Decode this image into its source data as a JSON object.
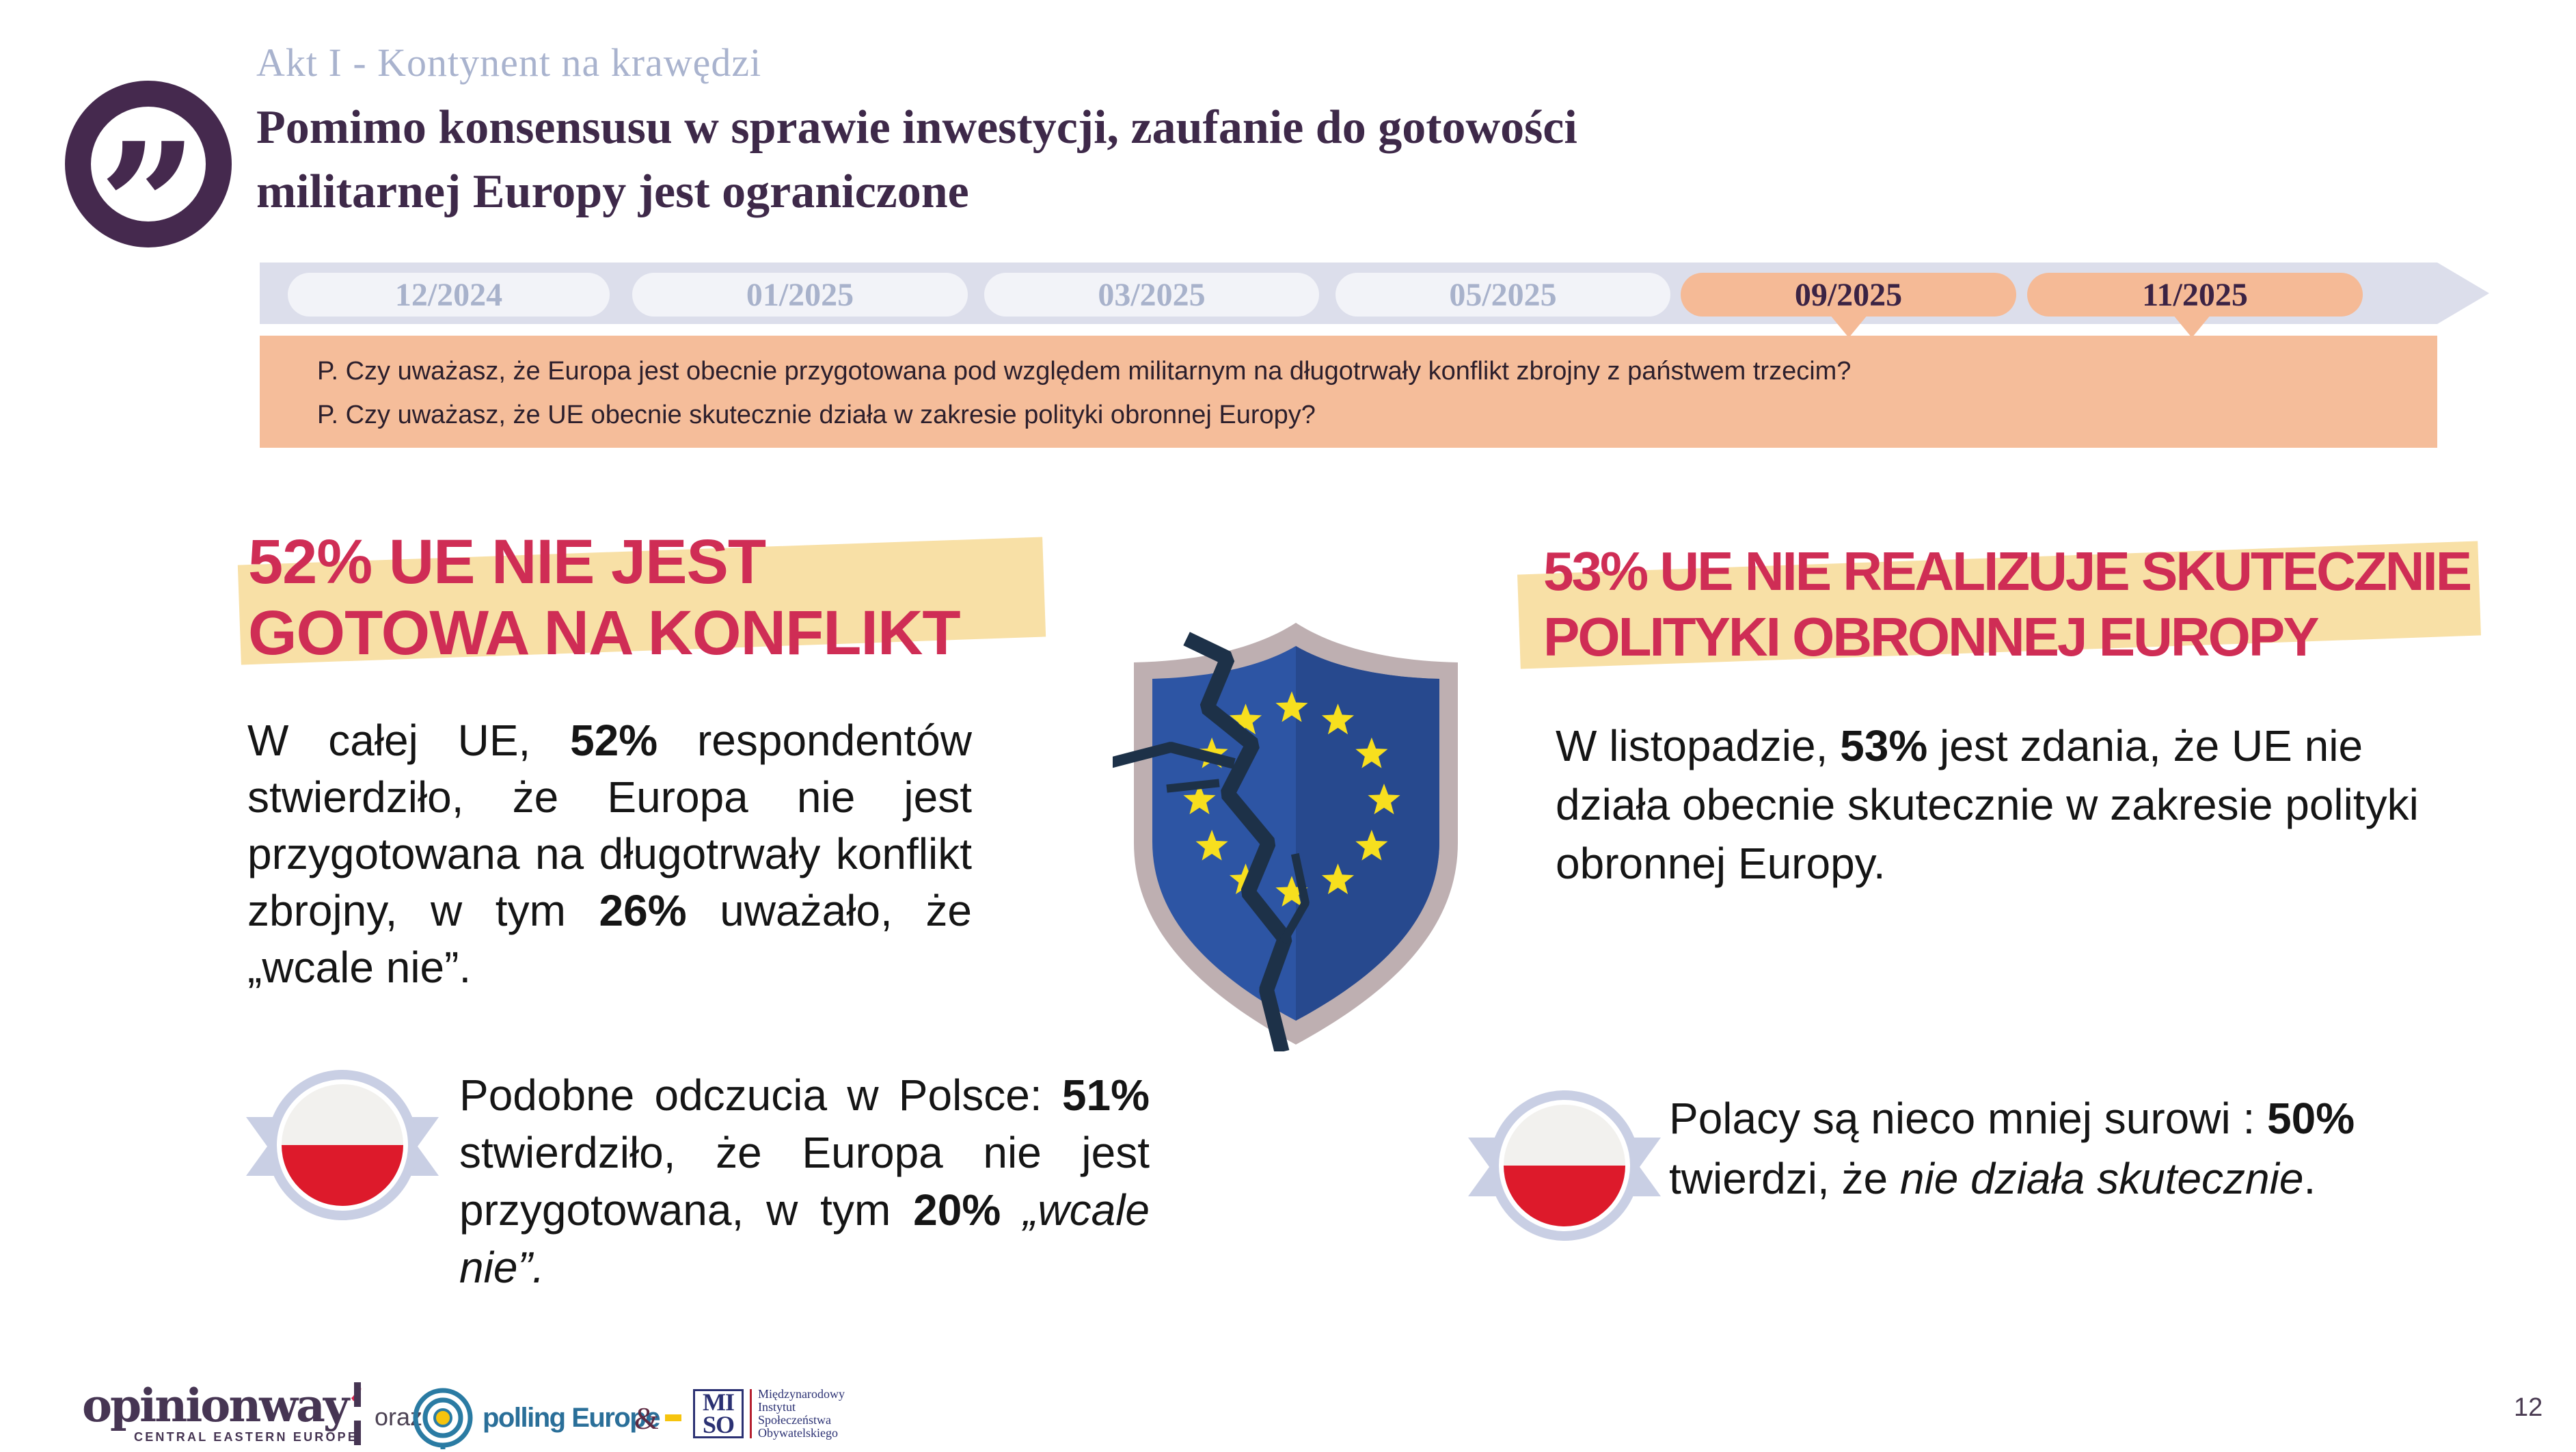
{
  "header": {
    "eyebrow": "Akt I - Kontynent na krawędzi",
    "title_line1": "Pomimo konsensusu w sprawie inwestycji, zaufanie do gotowości",
    "title_line2": "militarnej Europy jest ograniczone",
    "quote_glyph": "”"
  },
  "timeline": {
    "tabs": [
      {
        "label": "12/2024",
        "active": false
      },
      {
        "label": "01/2025",
        "active": false
      },
      {
        "label": "03/2025",
        "active": false
      },
      {
        "label": "05/2025",
        "active": false
      },
      {
        "label": "09/2025",
        "active": true
      },
      {
        "label": "11/2025",
        "active": true
      }
    ]
  },
  "questions": {
    "q1": "P. Czy uważasz, że Europa jest obecnie przygotowana pod względem militarnym na długotrwały konflikt zbrojny z państwem trzecim?",
    "q2": "P. Czy uważasz, że UE obecnie skutecznie działa w zakresie polityki obronnej Europy?"
  },
  "left": {
    "headline_line1": "52% UE NIE JEST",
    "headline_line2": "GOTOWA NA KONFLIKT",
    "stat": "52%",
    "sub_stat": "26%",
    "paragraph": [
      {
        "t": "W całej UE, "
      },
      {
        "t": "52%",
        "b": true
      },
      {
        "t": " respondentów stwierdziło, że Europa nie jest przygotowana na długotrwały konflikt zbrojny, w tym "
      },
      {
        "t": "26%",
        "b": true
      },
      {
        "t": " uważało, że „wcale nie”."
      }
    ],
    "note_stat": "51%",
    "note": [
      {
        "t": "Podobne odczucia w Polsce: "
      },
      {
        "t": "51%",
        "b": true
      },
      {
        "t": " stwierdziło, że Europa nie jest przygotowana, w tym "
      },
      {
        "t": "20%",
        "b": true
      },
      {
        "t": " "
      },
      {
        "t": "„wcale nie”.",
        "i": true
      }
    ]
  },
  "right": {
    "headline_line1": "53% UE NIE REALIZUJE SKUTECZNIE",
    "headline_line2": "POLITYKI OBRONNEJ EUROPY",
    "stat": "53%",
    "paragraph": [
      {
        "t": "W listopadzie, "
      },
      {
        "t": "53%",
        "b": true
      },
      {
        "t": " jest zdania, że UE nie działa obecnie skutecznie w zakresie polityki obronnej Europy."
      }
    ],
    "note_stat": "50%",
    "note": [
      {
        "t": "Polacy są nieco mniej surowi : "
      },
      {
        "t": "50%",
        "b": true
      },
      {
        "t": " twierdzi, że "
      },
      {
        "t": "nie działa skutecznie",
        "i": true
      },
      {
        "t": "."
      }
    ]
  },
  "footer": {
    "opinionway_word": "opinionway",
    "opinionway_apostrophe": "’",
    "opinionway_sub": "CENTRAL EASTERN EUROPE",
    "oraz": "oraz",
    "polling_europe": "polling Europe",
    "ampersand": "&",
    "miso_top": "MI",
    "miso_bottom": "SO",
    "miso_lines": [
      "Międzynarodowy",
      "Instytut",
      "Społeczeństwa",
      "Obywatelskiego"
    ]
  },
  "page": {
    "number": "12"
  },
  "colors": {
    "accent_crimson": "#cf2d55",
    "highlight_yellow": "#f8e0a6",
    "active_tab_salmon": "#f5ba96",
    "question_box_salmon": "#f5bd9a",
    "band_lavender": "#dcdeeb",
    "inactive_tab": "#f2f3f8",
    "title_purple": "#3e2949",
    "eu_blue": "#2d55a4",
    "eu_blue_dark": "#27498e",
    "shield_border_taupe": "#beafb1",
    "crack_navy": "#1d3148",
    "star_yellow": "#f7df1e",
    "flag_red": "#dd1a2b",
    "ribbon_lavender": "#c9cfe4",
    "footer_purple": "#463553",
    "polling_teal": "#2a6f99",
    "miso_navy": "#2b3173"
  }
}
